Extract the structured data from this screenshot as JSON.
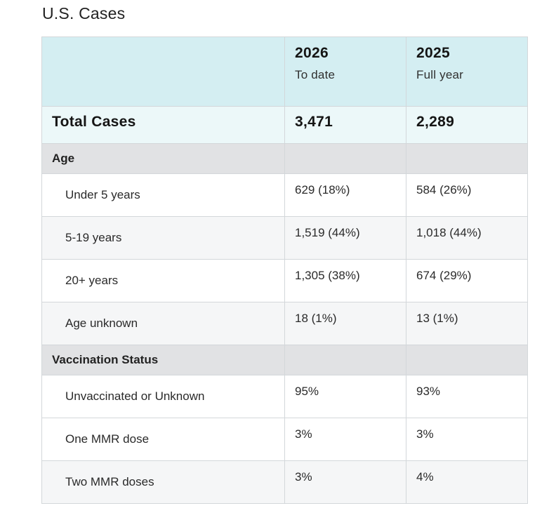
{
  "title": "U.S. Cases",
  "columns": [
    {
      "year": "2026",
      "sub": "To date"
    },
    {
      "year": "2025",
      "sub": "Full year"
    }
  ],
  "total": {
    "label": "Total Cases",
    "values": [
      "3,471",
      "2,289"
    ]
  },
  "sections": [
    {
      "label": "Age",
      "rows": [
        {
          "label": "Under 5 years",
          "values": [
            "629 (18%)",
            "584 (26%)"
          ]
        },
        {
          "label": "5-19 years",
          "values": [
            "1,519 (44%)",
            "1,018 (44%)"
          ]
        },
        {
          "label": "20+ years",
          "values": [
            "1,305 (38%)",
            "674 (29%)"
          ]
        },
        {
          "label": "Age unknown",
          "values": [
            "18 (1%)",
            "13 (1%)"
          ]
        }
      ]
    },
    {
      "label": "Vaccination Status",
      "rows": [
        {
          "label": "Unvaccinated or Unknown",
          "values": [
            "95%",
            "93%"
          ]
        },
        {
          "label": "One MMR dose",
          "values": [
            "3%",
            "3%"
          ]
        },
        {
          "label": "Two MMR doses",
          "values": [
            "3%",
            "4%"
          ]
        }
      ]
    }
  ]
}
